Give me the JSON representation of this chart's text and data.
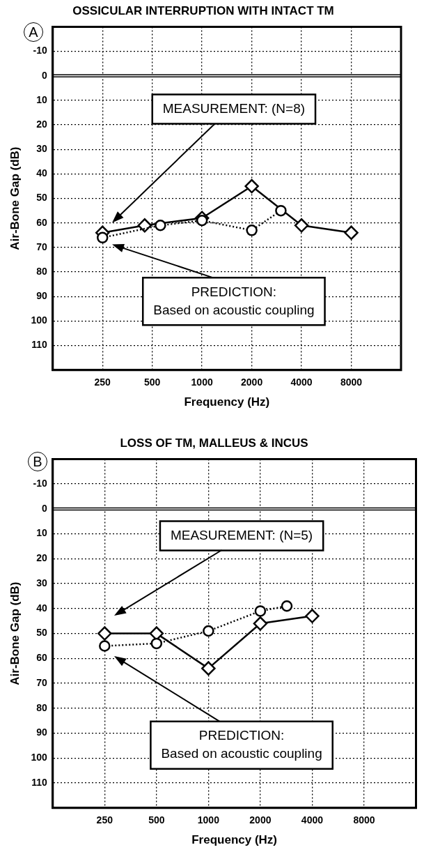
{
  "chart_data": [
    {
      "type": "line",
      "title": "OSSICULAR INTERRUPTION WITH INTACT TM",
      "xlabel": "Frequency (Hz)",
      "ylabel": "Air-Bone Gap (dB)",
      "log": "x",
      "xlim": [
        125,
        16000
      ],
      "xticks": [
        250,
        500,
        1000,
        2000,
        4000,
        8000
      ],
      "ylim": [
        120,
        -20
      ],
      "yticks": [
        -10,
        0,
        10,
        20,
        30,
        40,
        50,
        60,
        70,
        80,
        90,
        100,
        110
      ],
      "grid": true,
      "series": [
        {
          "color": "#000000",
          "marker": "diamond",
          "line_style": "solid",
          "x": [
            250,
            450,
            1000,
            2000,
            4000,
            8000
          ],
          "values": [
            64,
            61,
            58,
            45,
            61,
            64
          ]
        },
        {
          "color": "#000000",
          "marker": "circle",
          "line_style": "dotted",
          "x": [
            250,
            560,
            1000,
            2000,
            3000
          ],
          "values": [
            66,
            61,
            59,
            63,
            55
          ]
        }
      ],
      "ref_lines": [
        {
          "axis": "y",
          "value": 0
        }
      ],
      "annotations": [
        "A",
        "MEASUREMENT: (N=8)",
        "PREDICTION:\nBased on acoustic coupling"
      ]
    },
    {
      "type": "line",
      "title": "LOSS OF TM, MALLEUS & INCUS",
      "xlabel": "Frequency (Hz)",
      "ylabel": "Air-Bone Gap (dB)",
      "log": "x",
      "xlim": [
        125,
        16000
      ],
      "xticks": [
        250,
        500,
        1000,
        2000,
        4000,
        8000
      ],
      "ylim": [
        120,
        -20
      ],
      "yticks": [
        -10,
        0,
        10,
        20,
        30,
        40,
        50,
        60,
        70,
        80,
        90,
        100,
        110
      ],
      "grid": true,
      "series": [
        {
          "color": "#000000",
          "marker": "diamond",
          "line_style": "solid",
          "x": [
            250,
            500,
            1000,
            2000,
            4000
          ],
          "values": [
            50,
            50,
            64,
            46,
            43
          ]
        },
        {
          "color": "#000000",
          "marker": "circle",
          "line_style": "dotted",
          "x": [
            250,
            500,
            1000,
            2000,
            2850
          ],
          "values": [
            55,
            54,
            49,
            41,
            39
          ]
        }
      ],
      "ref_lines": [
        {
          "axis": "y",
          "value": 0
        }
      ],
      "annotations": [
        "B",
        "MEASUREMENT: (N=5)",
        "PREDICTION:\nBased on acoustic coupling"
      ]
    }
  ]
}
